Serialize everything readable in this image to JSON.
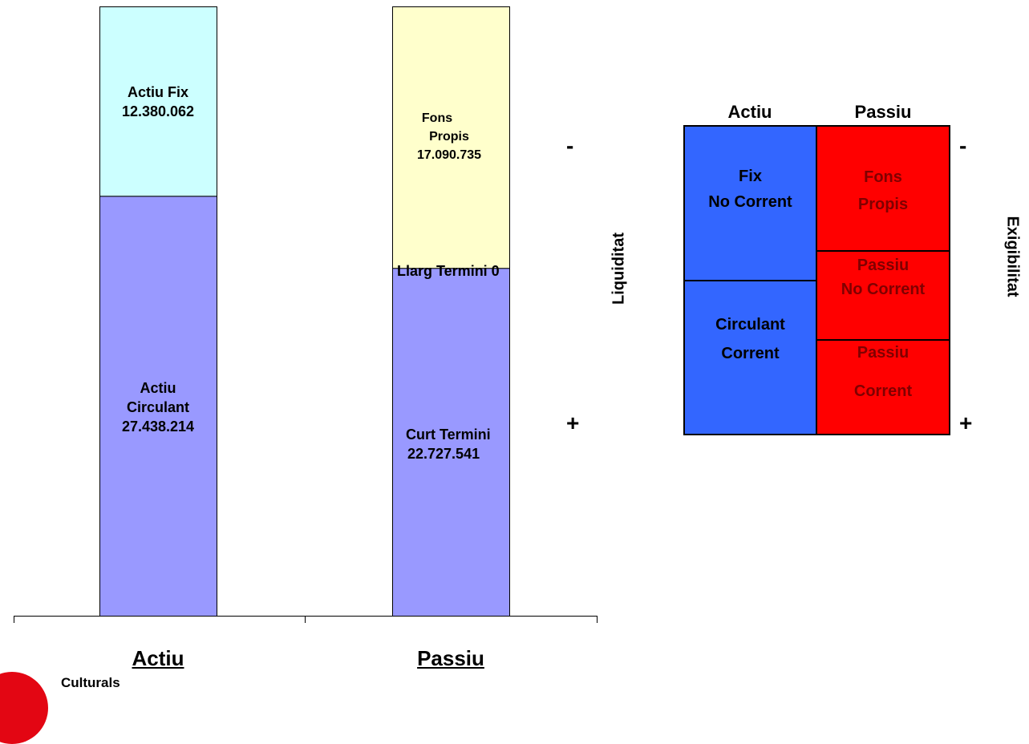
{
  "chart_data": {
    "type": "bar",
    "stacked": true,
    "categories": [
      "Actiu",
      "Passiu"
    ],
    "series": [
      {
        "category": "Actiu",
        "segments": [
          {
            "label": "Actiu Circulant",
            "value": 27438214,
            "value_text": "27.438.214",
            "color": "#9999ff"
          },
          {
            "label": "Actiu Fix",
            "value": 12380062,
            "value_text": "12.380.062",
            "color": "#ccffff"
          }
        ]
      },
      {
        "category": "Passiu",
        "segments": [
          {
            "label": "Curt Termini",
            "value": 22727541,
            "value_text": "22.727.541",
            "color": "#9999ff"
          },
          {
            "label": "Llarg Termini",
            "value": 0,
            "value_text": "0",
            "color": "#cccccc"
          },
          {
            "label": "Fons Propis",
            "value": 17090735,
            "value_text": "17.090.735",
            "color": "#ffffcc"
          }
        ]
      }
    ],
    "ylim": [
      0,
      39818276
    ]
  },
  "labels": {
    "actiu_fix_name": "Actiu Fix",
    "actiu_fix_value": "12.380.062",
    "actiu_circ_line1": "Actiu",
    "actiu_circ_line2": "Circulant",
    "actiu_circ_value": "27.438.214",
    "fons_line1": "Fons",
    "fons_line2": "Propis",
    "fons_value": "17.090.735",
    "llarg": "Llarg Termini 0",
    "curt_name": "Curt Termini",
    "curt_value": "22.727.541",
    "x_actiu": "Actiu ",
    "x_passiu": "Passiu"
  },
  "liquidity": {
    "minus": "-",
    "plus": "+",
    "axis": "Liquiditat"
  },
  "scheme": {
    "head_actiu": "Actiu",
    "head_passiu": "Passiu",
    "fix_line1": "Fix",
    "fix_line2": "No Corrent",
    "circ_line1": "Circulant",
    "circ_line2": "Corrent",
    "fons_line1": "Fons",
    "fons_line2": "Propis",
    "pnc_line1": "Passiu",
    "pnc_line2": "No Corrent",
    "pc_line1": "Passiu",
    "pc_line2": "Corrent",
    "minus": "-",
    "plus": "+",
    "axis": "Exigibilitat",
    "blue": "#3366ff",
    "red": "#ff0000"
  },
  "footer": {
    "logo_text": "Culturals",
    "logo_color": "#e30613"
  }
}
